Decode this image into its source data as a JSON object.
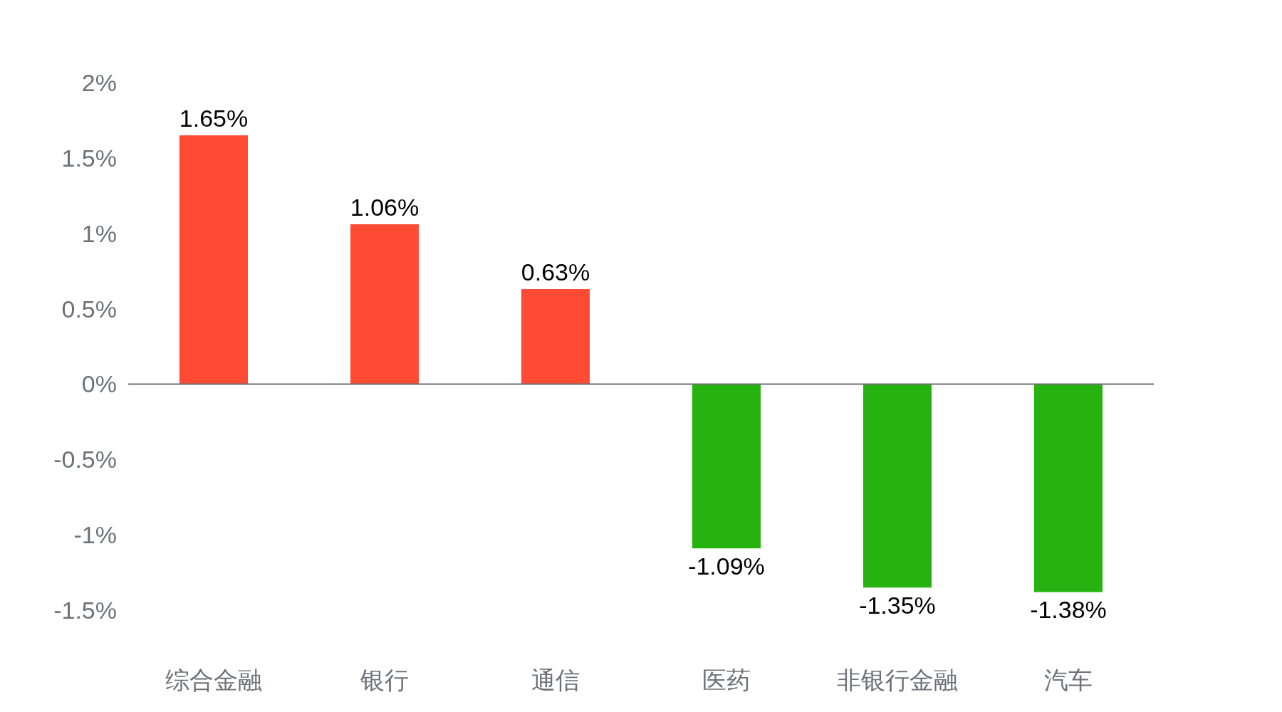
{
  "chart_data": {
    "type": "bar",
    "categories": [
      "综合金融",
      "银行",
      "通信",
      "医药",
      "非银行金融",
      "汽车"
    ],
    "values": [
      1.65,
      1.06,
      0.63,
      -1.09,
      -1.35,
      -1.38
    ],
    "colors": [
      "#ff4b33",
      "#ff4b33",
      "#ff4b33",
      "#27b30f",
      "#27b30f",
      "#27b30f"
    ],
    "value_labels": [
      "1.65%",
      "1.06%",
      "0.63%",
      "-1.09%",
      "-1.35%",
      "-1.38%"
    ],
    "ylim": [
      -1.5,
      2
    ],
    "yticks": [
      {
        "value": 2,
        "label": "2%"
      },
      {
        "value": 1.5,
        "label": "1.5%"
      },
      {
        "value": 1,
        "label": "1%"
      },
      {
        "value": 0.5,
        "label": "0.5%"
      },
      {
        "value": 0,
        "label": "0%"
      },
      {
        "value": -0.5,
        "label": "-0.5%"
      },
      {
        "value": -1,
        "label": "-1%"
      },
      {
        "value": -1.5,
        "label": "-1.5%"
      }
    ]
  }
}
